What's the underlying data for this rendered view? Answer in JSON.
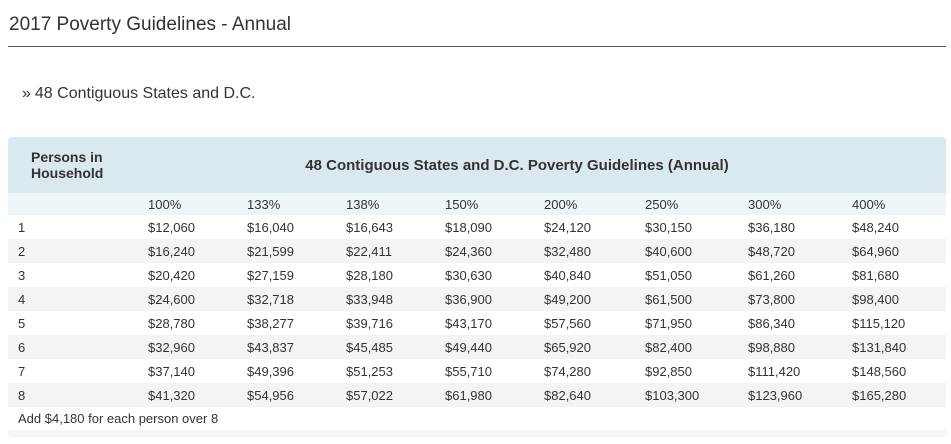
{
  "page": {
    "title": "2017 Poverty Guidelines - Annual",
    "region_link_prefix": "»",
    "region_link": "48 Contiguous States and D.C."
  },
  "table": {
    "persons_header_line1": "Persons in",
    "persons_header_line2": "Household",
    "main_header": "48 Contiguous States and D.C. Poverty Guidelines (Annual)",
    "percent_columns": [
      "100%",
      "133%",
      "138%",
      "150%",
      "200%",
      "250%",
      "300%",
      "400%"
    ],
    "rows": [
      {
        "size": "1",
        "values": [
          "$12,060",
          "$16,040",
          "$16,643",
          "$18,090",
          "$24,120",
          "$30,150",
          "$36,180",
          "$48,240"
        ]
      },
      {
        "size": "2",
        "values": [
          "$16,240",
          "$21,599",
          "$22,411",
          "$24,360",
          "$32,480",
          "$40,600",
          "$48,720",
          "$64,960"
        ]
      },
      {
        "size": "3",
        "values": [
          "$20,420",
          "$27,159",
          "$28,180",
          "$30,630",
          "$40,840",
          "$51,050",
          "$61,260",
          "$81,680"
        ]
      },
      {
        "size": "4",
        "values": [
          "$24,600",
          "$32,718",
          "$33,948",
          "$36,900",
          "$49,200",
          "$61,500",
          "$73,800",
          "$98,400"
        ]
      },
      {
        "size": "5",
        "values": [
          "$28,780",
          "$38,277",
          "$39,716",
          "$43,170",
          "$57,560",
          "$71,950",
          "$86,340",
          "$115,120"
        ]
      },
      {
        "size": "6",
        "values": [
          "$32,960",
          "$43,837",
          "$45,485",
          "$49,440",
          "$65,920",
          "$82,400",
          "$98,880",
          "$131,840"
        ]
      },
      {
        "size": "7",
        "values": [
          "$37,140",
          "$49,396",
          "$51,253",
          "$55,710",
          "$74,280",
          "$92,850",
          "$111,420",
          "$148,560"
        ]
      },
      {
        "size": "8",
        "values": [
          "$41,320",
          "$54,956",
          "$57,022",
          "$61,980",
          "$82,640",
          "$103,300",
          "$123,960",
          "$165,280"
        ]
      }
    ],
    "footnote": "Add $4,180 for each person over 8"
  },
  "colors": {
    "header_bg": "#d9e9ee",
    "pct_row_bg": "#eef5f7",
    "stripe_bg": "#f4f4f4"
  }
}
